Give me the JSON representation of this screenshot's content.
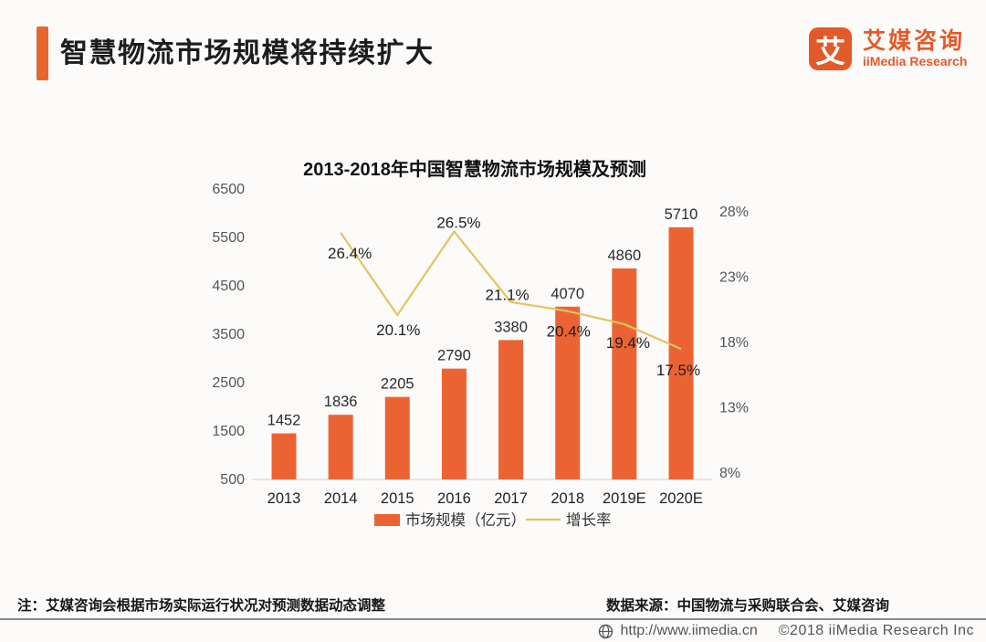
{
  "header": {
    "title": "智慧物流市场规模将持续扩大"
  },
  "logo": {
    "glyph": "艾",
    "name_cn": "艾媒咨询",
    "name_en": "iiMedia Research"
  },
  "colors": {
    "brand_orange": "#e35a2a",
    "accent_orange": "#e7652f",
    "bar_orange": "#ec6333",
    "line_gold": "#e2c45f",
    "axis_text": "#555555",
    "label_text": "#2b2b2b",
    "baseline_gray": "#dddddd"
  },
  "chart_data": {
    "type": "bar",
    "title": "2013-2018年中国智慧物流市场规模及预测",
    "categories": [
      "2013",
      "2014",
      "2015",
      "2016",
      "2017",
      "2018",
      "2019E",
      "2020E"
    ],
    "series": [
      {
        "name": "市场规模（亿元）",
        "type": "bar",
        "axis": "left",
        "color": "#ec6333",
        "values": [
          1452,
          1836,
          2205,
          2790,
          3380,
          4070,
          4860,
          5710
        ],
        "labels": [
          "1452",
          "1836",
          "2205",
          "2790",
          "3380",
          "4070",
          "4860",
          "5710"
        ]
      },
      {
        "name": "增长率",
        "type": "line",
        "axis": "right",
        "color": "#e2c45f",
        "values": [
          null,
          26.4,
          20.1,
          26.5,
          21.1,
          20.4,
          19.4,
          17.5
        ],
        "labels": [
          "",
          "26.4%",
          "20.1%",
          "26.5%",
          "21.1%",
          "20.4%",
          "19.4%",
          "17.5%"
        ]
      }
    ],
    "left_axis": {
      "min": 500,
      "max": 6500,
      "ticks": [
        500,
        1500,
        2500,
        3500,
        4500,
        5500,
        6500
      ]
    },
    "right_axis": {
      "min": 8,
      "max": 28,
      "ticks": [
        8,
        13,
        18,
        23,
        28
      ],
      "suffix": "%"
    },
    "grid": false,
    "legend_position": "bottom",
    "label_offsets": [
      null,
      [
        10,
        28
      ],
      [
        1,
        22
      ],
      [
        5,
        -4
      ],
      [
        -4,
        -2
      ],
      [
        1,
        28
      ],
      [
        4,
        26
      ],
      [
        -3,
        29
      ]
    ]
  },
  "notes": {
    "note_left": "注：艾媒咨询会根据市场实际运行状况对预测数据动态调整",
    "source": "数据来源：中国物流与采购联合会、艾媒咨询"
  },
  "footer": {
    "url": "http://www.iimedia.cn",
    "copyright": "©2018  iiMedia Research Inc"
  }
}
